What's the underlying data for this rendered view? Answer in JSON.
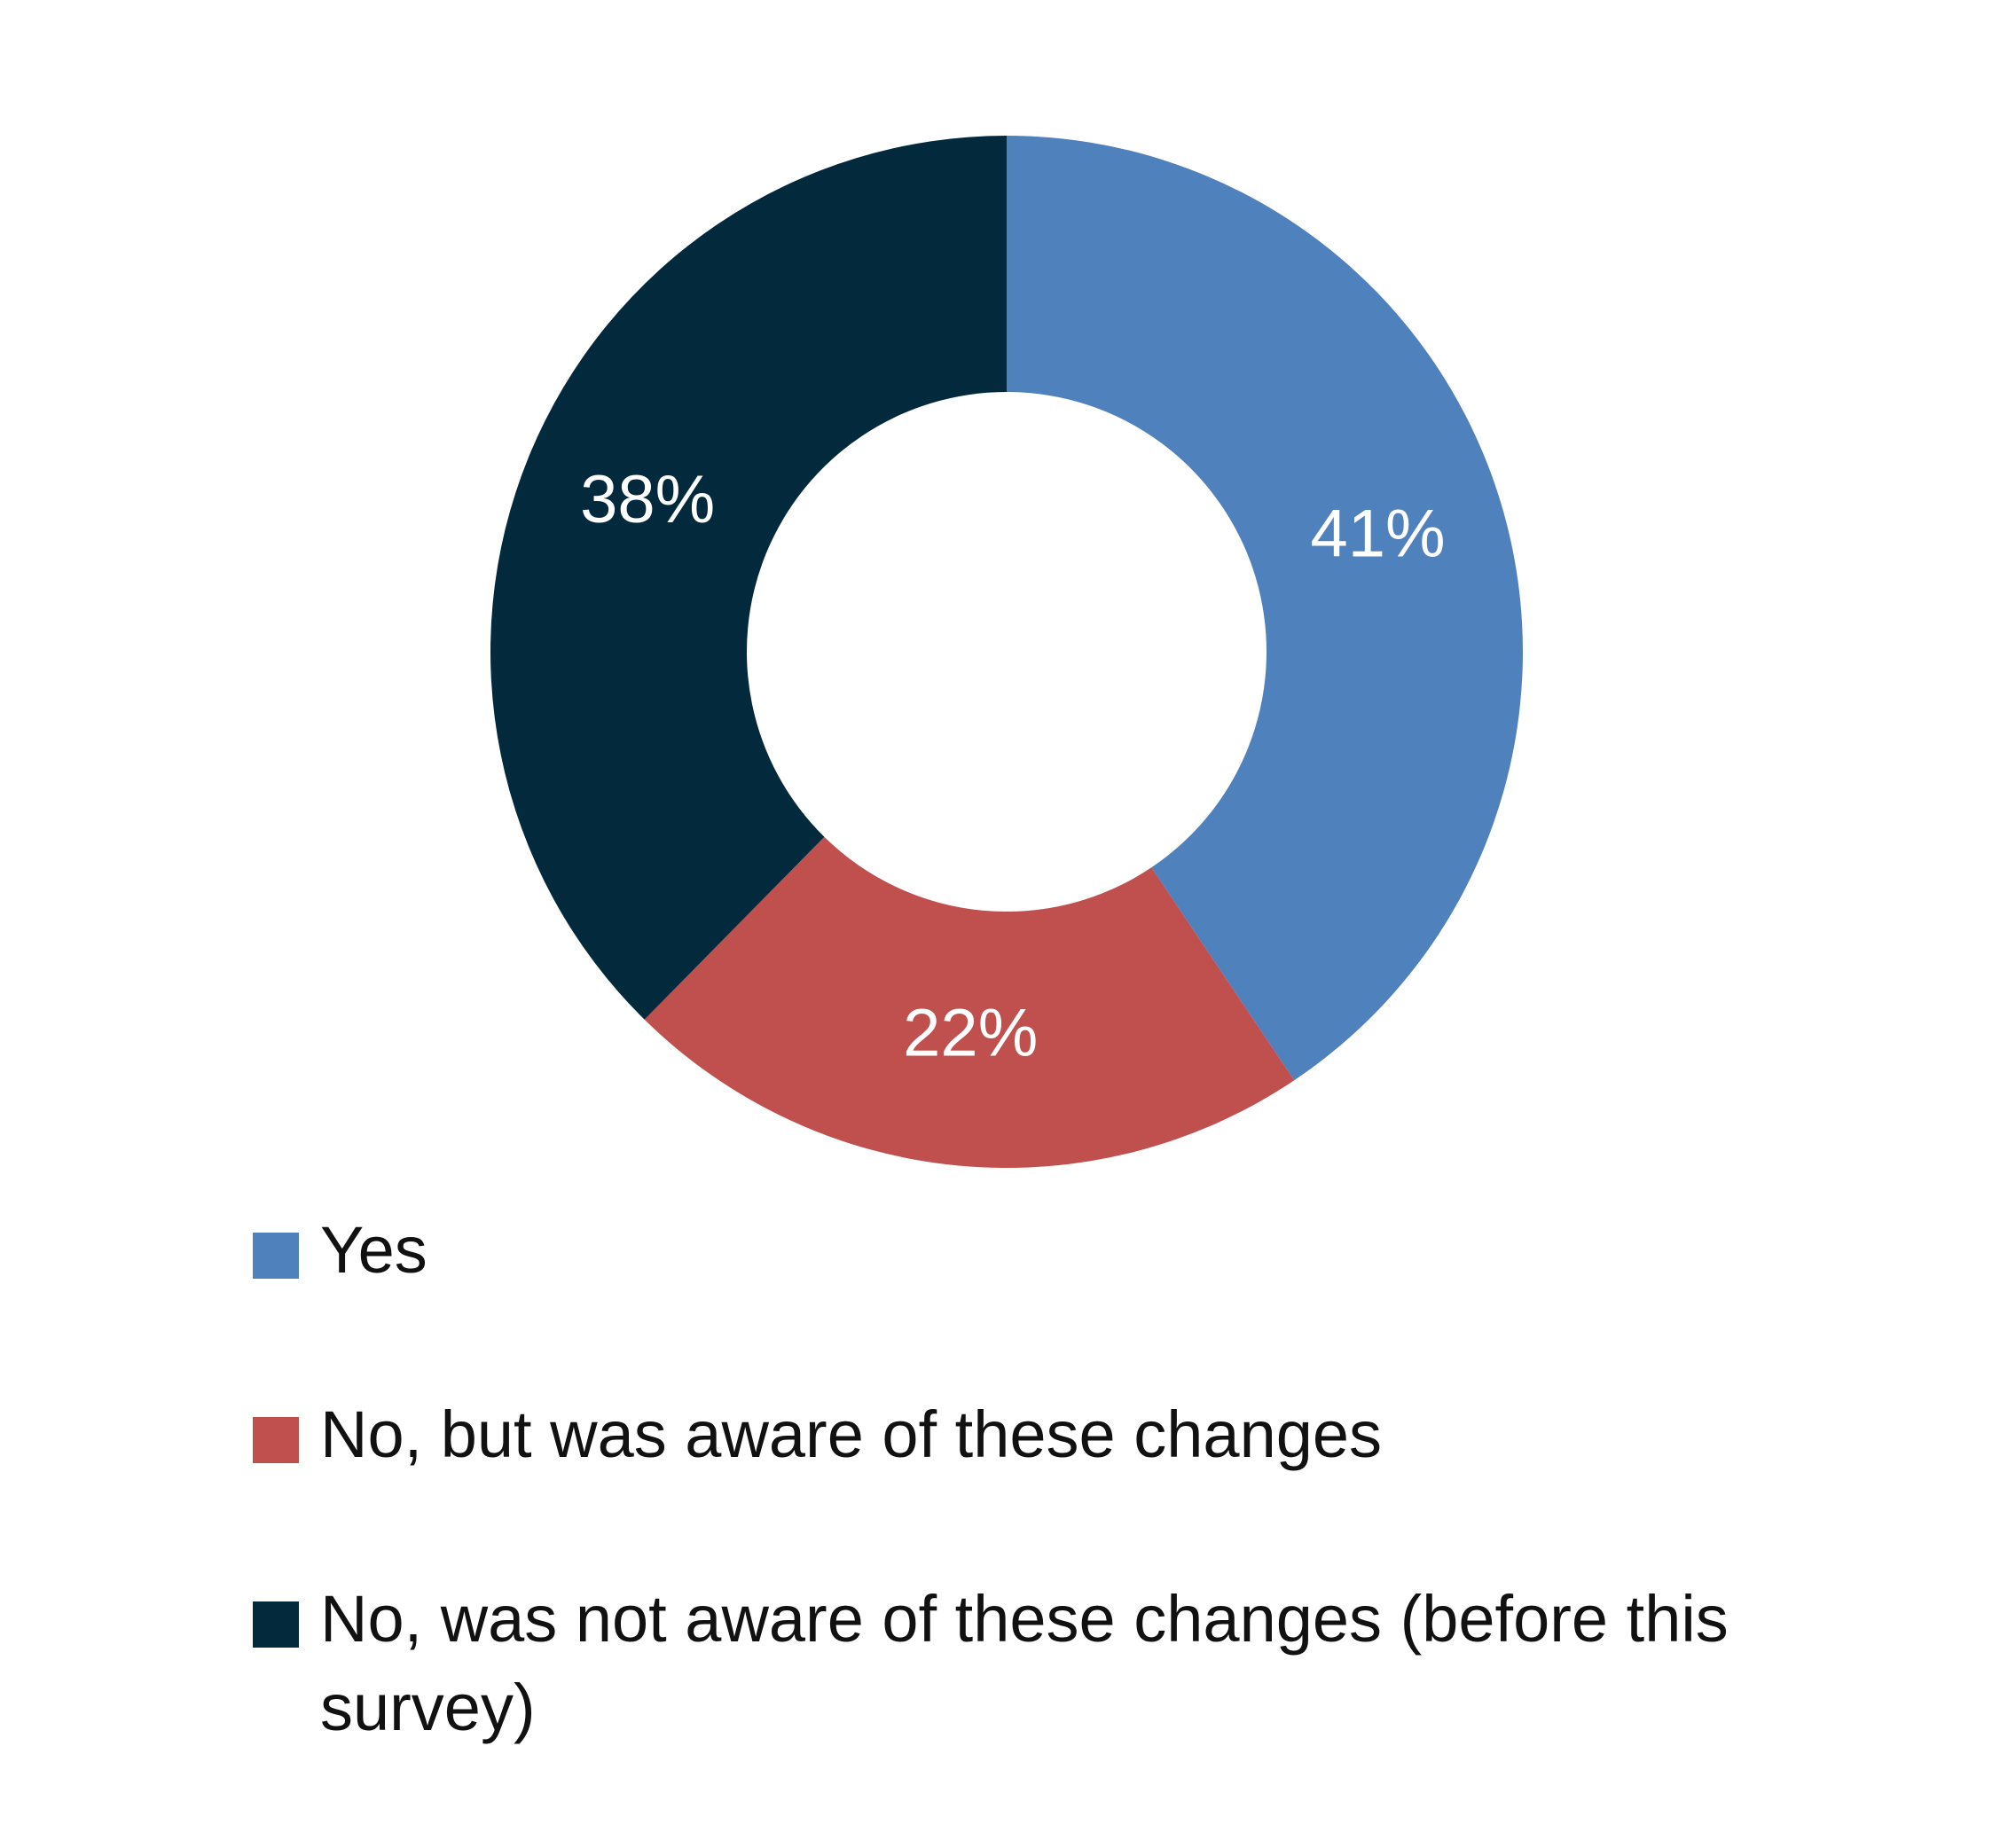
{
  "chart_data": {
    "type": "pie",
    "variant": "donut",
    "slices": [
      {
        "label": "Yes",
        "value": 41,
        "display": "41%",
        "color": "#4F81BD"
      },
      {
        "label": "No, but was aware of these changes",
        "value": 22,
        "display": "22%",
        "color": "#C0504D"
      },
      {
        "label": "No, was not aware of these changes (before this survey)",
        "value": 38,
        "display": "38%",
        "color": "#032A3C"
      }
    ],
    "legend_position": "bottom"
  }
}
